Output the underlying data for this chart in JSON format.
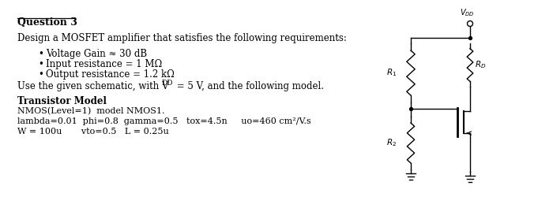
{
  "bg_color": "#ffffff",
  "title": "Question 3",
  "body_text": "Design a MOSFET amplifier that satisfies the following requirements:",
  "bullets": [
    "Voltage Gain ≈ 30 dB",
    "Input resistance = 1 MΩ",
    "Output resistance = 1.2 kΩ"
  ],
  "model_title": "Transistor Model",
  "model_lines": [
    "NMOS(Level=1)  model NMOS1.",
    "lambda=0.01  phi=0.8  gamma=0.5   tox=4.5n     uo=460 cm²/V.s",
    "W = 100u       vto=0.5   L = 0.25u"
  ]
}
